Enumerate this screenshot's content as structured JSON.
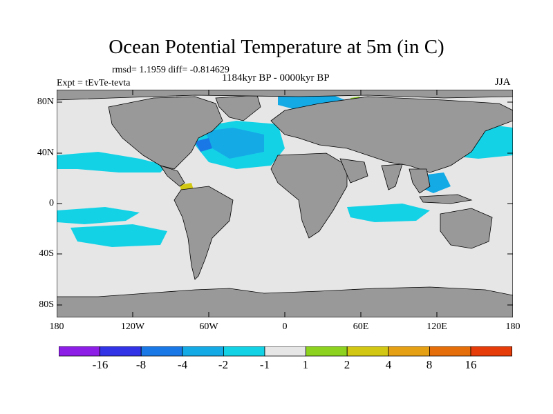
{
  "title": "Ocean Potential Temperature at 5m (in C)",
  "stats": "rmsd= 1.1959 diff= -0.814629",
  "experiment": "Expt = tEvTe-tevta",
  "period": "1184kyr BP - 0000kyr BP",
  "season": "JJA",
  "map": {
    "projection": "cylindrical equidistant",
    "lon_range": [
      -180,
      180
    ],
    "lat_range": [
      -90,
      90
    ],
    "x_ticks": [
      {
        "value": -180,
        "label": "180"
      },
      {
        "value": -120,
        "label": "120W"
      },
      {
        "value": -60,
        "label": "60W"
      },
      {
        "value": 0,
        "label": "0"
      },
      {
        "value": 60,
        "label": "60E"
      },
      {
        "value": 120,
        "label": "120E"
      },
      {
        "value": 180,
        "label": "180"
      }
    ],
    "y_ticks": [
      {
        "value": 80,
        "label": "80N"
      },
      {
        "value": 40,
        "label": "40N"
      },
      {
        "value": 0,
        "label": "0"
      },
      {
        "value": -40,
        "label": "40S"
      },
      {
        "value": -80,
        "label": "80S"
      }
    ],
    "colors": {
      "land": "#999999",
      "ocean_neutral": "#e6e6e6",
      "coastline": "#000000"
    }
  },
  "colorbar": {
    "colors": [
      "#8c1ee6",
      "#3232e6",
      "#1978e6",
      "#14aae6",
      "#14d2e6",
      "#e6e6e6",
      "#8cd21e",
      "#d2c814",
      "#e6a014",
      "#e66e0a",
      "#e63c0a"
    ],
    "labels": [
      "-16",
      "-8",
      "-4",
      "-2",
      "-1",
      "1",
      "2",
      "4",
      "8",
      "16"
    ]
  }
}
